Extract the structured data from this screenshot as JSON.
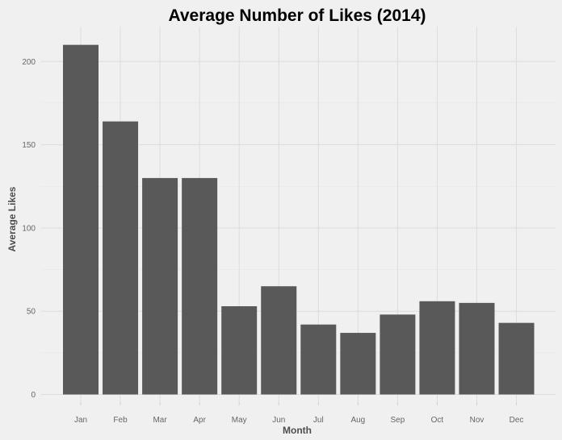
{
  "chart_data": {
    "type": "bar",
    "title": "Average Number of Likes (2014)",
    "xlabel": "Month",
    "ylabel": "Average Likes",
    "categories": [
      "Jan",
      "Feb",
      "Mar",
      "Apr",
      "May",
      "Jun",
      "Jul",
      "Aug",
      "Sep",
      "Oct",
      "Nov",
      "Dec"
    ],
    "values": [
      210,
      164,
      130,
      130,
      53,
      65,
      42,
      37,
      48,
      56,
      55,
      43
    ],
    "ylim": [
      0,
      220
    ],
    "yticks": [
      0,
      50,
      100,
      150,
      200
    ],
    "grid": true,
    "legend": "none",
    "colors": {
      "bar": "#595959",
      "background": "#f0f0f0",
      "grid": "#dcdcdc"
    }
  }
}
